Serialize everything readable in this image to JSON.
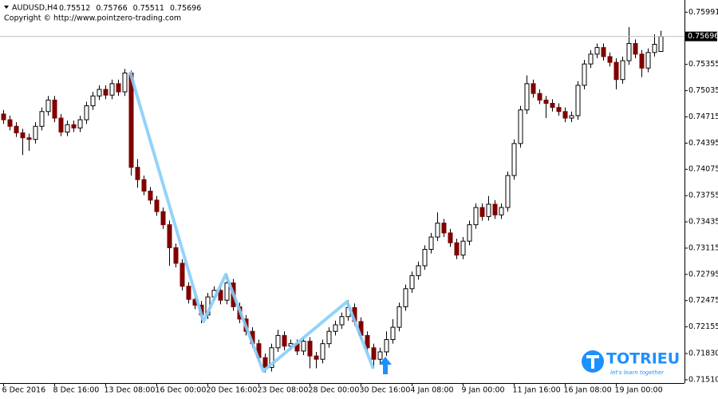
{
  "chart_data": {
    "type": "candlestick",
    "symbol": "AUDUSD,H4",
    "copyright": "Copyright © http://www.pointzero-trading.com",
    "watermark": {
      "title": "TOTRIEU",
      "tagline": "let's learn together"
    },
    "categories": [
      "6 Dec 2016",
      null,
      null,
      null,
      null,
      null,
      null,
      null,
      "8 Dec 16:00",
      null,
      null,
      null,
      null,
      null,
      null,
      null,
      "13 Dec 08:00",
      null,
      null,
      null,
      null,
      null,
      null,
      null,
      "16 Dec 00:00",
      null,
      null,
      null,
      null,
      null,
      null,
      null,
      "20 Dec 16:00",
      null,
      null,
      null,
      null,
      null,
      null,
      null,
      "23 Dec 08:00",
      null,
      null,
      null,
      null,
      null,
      null,
      null,
      "28 Dec 00:00",
      null,
      null,
      null,
      null,
      null,
      null,
      null,
      "30 Dec 16:00",
      null,
      null,
      null,
      null,
      null,
      null,
      null,
      "4 Jan 08:00",
      null,
      null,
      null,
      null,
      null,
      null,
      null,
      "9 Jan 00:00",
      null,
      null,
      null,
      null,
      null,
      null,
      null,
      "11 Jan 16:00",
      null,
      null,
      null,
      null,
      null,
      null,
      null,
      "16 Jan 08:00",
      null,
      null,
      null,
      null,
      null,
      null,
      null,
      "19 Jan 00:00",
      null,
      null,
      null,
      null,
      null,
      null,
      null
    ],
    "open": [
      0.7475,
      0.7468,
      0.746,
      0.7452,
      0.7446,
      0.7444,
      0.746,
      0.7478,
      0.7492,
      0.747,
      0.7453,
      0.7462,
      0.7458,
      0.7468,
      0.7485,
      0.7497,
      0.7505,
      0.7498,
      0.7512,
      0.7502,
      0.7525,
      0.741,
      0.7395,
      0.7381,
      0.737,
      0.7356,
      0.734,
      0.7312,
      0.7293,
      0.7265,
      0.7249,
      0.7242,
      0.723,
      0.7252,
      0.726,
      0.7248,
      0.7269,
      0.724,
      0.7225,
      0.721,
      0.7195,
      0.7178,
      0.7166,
      0.719,
      0.7205,
      0.7192,
      0.7195,
      0.7186,
      0.7198,
      0.718,
      0.7176,
      0.7195,
      0.721,
      0.7218,
      0.7228,
      0.7239,
      0.7222,
      0.7205,
      0.719,
      0.7176,
      0.7185,
      0.72,
      0.7215,
      0.724,
      0.7262,
      0.7278,
      0.729,
      0.731,
      0.7325,
      0.7342,
      0.733,
      0.7318,
      0.7303,
      0.732,
      0.734,
      0.7361,
      0.735,
      0.7365,
      0.7352,
      0.7361,
      0.74,
      0.7439,
      0.748,
      0.7512,
      0.75,
      0.7492,
      0.7488,
      0.7483,
      0.7478,
      0.747,
      0.7473,
      0.751,
      0.7536,
      0.7548,
      0.7556,
      0.7545,
      0.7538,
      0.7517,
      0.754,
      0.7561,
      0.7548,
      0.7531,
      0.755,
      0.75512
    ],
    "high": [
      0.748,
      0.7473,
      0.7465,
      0.7457,
      0.7451,
      0.7465,
      0.7483,
      0.7497,
      0.7497,
      0.7475,
      0.7467,
      0.7467,
      0.7473,
      0.749,
      0.7502,
      0.751,
      0.751,
      0.7517,
      0.7517,
      0.753,
      0.7528,
      0.742,
      0.74,
      0.7386,
      0.7375,
      0.7361,
      0.7345,
      0.7317,
      0.7298,
      0.727,
      0.7254,
      0.7247,
      0.7257,
      0.7265,
      0.7265,
      0.728,
      0.7274,
      0.7245,
      0.723,
      0.7215,
      0.72,
      0.7183,
      0.7195,
      0.7212,
      0.721,
      0.72,
      0.72,
      0.7203,
      0.7203,
      0.7185,
      0.72,
      0.7215,
      0.7223,
      0.7233,
      0.7248,
      0.7244,
      0.7227,
      0.721,
      0.7195,
      0.719,
      0.721,
      0.7225,
      0.7245,
      0.7267,
      0.7283,
      0.7295,
      0.7315,
      0.733,
      0.7355,
      0.7347,
      0.7335,
      0.7323,
      0.7325,
      0.7345,
      0.7366,
      0.7366,
      0.7375,
      0.737,
      0.7366,
      0.7405,
      0.7444,
      0.7485,
      0.7522,
      0.7517,
      0.7505,
      0.7497,
      0.7493,
      0.7488,
      0.7483,
      0.7478,
      0.7515,
      0.7541,
      0.7553,
      0.7561,
      0.7561,
      0.755,
      0.7543,
      0.7545,
      0.7581,
      0.7566,
      0.7553,
      0.7555,
      0.7572,
      0.75766
    ],
    "low": [
      0.7463,
      0.7455,
      0.7447,
      0.7425,
      0.743,
      0.7439,
      0.7455,
      0.7473,
      0.7465,
      0.7448,
      0.7448,
      0.7453,
      0.7453,
      0.7463,
      0.748,
      0.7492,
      0.7493,
      0.7493,
      0.7497,
      0.7497,
      0.74,
      0.7385,
      0.7376,
      0.7365,
      0.7351,
      0.7335,
      0.729,
      0.7288,
      0.726,
      0.7244,
      0.7237,
      0.722,
      0.7225,
      0.7247,
      0.7243,
      0.7243,
      0.7235,
      0.722,
      0.7205,
      0.719,
      0.7173,
      0.716,
      0.7161,
      0.7185,
      0.7187,
      0.7187,
      0.7181,
      0.7181,
      0.7165,
      0.7165,
      0.7171,
      0.719,
      0.7205,
      0.7213,
      0.7223,
      0.7217,
      0.72,
      0.7185,
      0.7165,
      0.7171,
      0.718,
      0.7195,
      0.721,
      0.7235,
      0.7257,
      0.7273,
      0.7285,
      0.7305,
      0.732,
      0.7325,
      0.7313,
      0.7298,
      0.7298,
      0.7315,
      0.7335,
      0.7345,
      0.7345,
      0.7347,
      0.7347,
      0.7356,
      0.7395,
      0.7434,
      0.7475,
      0.7495,
      0.7487,
      0.747,
      0.7478,
      0.7473,
      0.7465,
      0.7465,
      0.7468,
      0.7505,
      0.7531,
      0.7543,
      0.754,
      0.7533,
      0.7505,
      0.7512,
      0.7535,
      0.7543,
      0.752,
      0.7526,
      0.7545,
      0.75511
    ],
    "close": [
      0.7468,
      0.746,
      0.7452,
      0.7446,
      0.7444,
      0.746,
      0.7478,
      0.7492,
      0.747,
      0.7453,
      0.7462,
      0.7458,
      0.7468,
      0.7485,
      0.7497,
      0.7505,
      0.7498,
      0.7512,
      0.7502,
      0.7525,
      0.741,
      0.7395,
      0.7381,
      0.737,
      0.7356,
      0.734,
      0.7312,
      0.7293,
      0.7265,
      0.7249,
      0.7242,
      0.723,
      0.7252,
      0.726,
      0.7248,
      0.7269,
      0.724,
      0.7225,
      0.721,
      0.7195,
      0.7178,
      0.7166,
      0.719,
      0.7205,
      0.7192,
      0.7195,
      0.7186,
      0.7198,
      0.718,
      0.7176,
      0.7195,
      0.721,
      0.7218,
      0.7228,
      0.7239,
      0.7222,
      0.7205,
      0.719,
      0.7176,
      0.7185,
      0.72,
      0.7215,
      0.724,
      0.7262,
      0.7278,
      0.729,
      0.731,
      0.7325,
      0.7342,
      0.733,
      0.7318,
      0.7303,
      0.732,
      0.734,
      0.7361,
      0.735,
      0.7365,
      0.7352,
      0.7361,
      0.74,
      0.7439,
      0.748,
      0.7512,
      0.75,
      0.7492,
      0.7488,
      0.7483,
      0.7478,
      0.747,
      0.7473,
      0.751,
      0.7536,
      0.7548,
      0.7556,
      0.7545,
      0.7538,
      0.7517,
      0.754,
      0.7561,
      0.7548,
      0.7531,
      0.755,
      0.756,
      0.75696
    ],
    "up_color": "#ffffff",
    "down_color": "#800000",
    "wick_color": "#000000",
    "ylim": [
      0.7147,
      0.7614
    ],
    "yticks": [
      0.75991,
      0.75355,
      0.75035,
      0.74715,
      0.74395,
      0.74075,
      0.73755,
      0.73435,
      0.73115,
      0.72795,
      0.72475,
      0.72155,
      {
        "value": 0.7183,
        "label": "0.71830"
      },
      {
        "value": 0.7151,
        "label": "0.71510"
      }
    ],
    "grid": false
  }
}
